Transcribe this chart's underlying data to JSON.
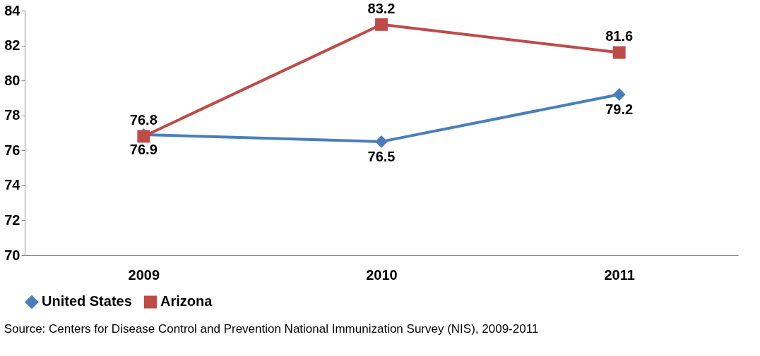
{
  "chart_data": {
    "type": "line",
    "categories": [
      "2009",
      "2010",
      "2011"
    ],
    "series": [
      {
        "name": "United States",
        "color": "#4a7ebb",
        "marker": "diamond",
        "values": [
          76.9,
          76.5,
          79.2
        ]
      },
      {
        "name": "Arizona",
        "color": "#be4b48",
        "marker": "square",
        "values": [
          76.8,
          83.2,
          81.6
        ]
      }
    ],
    "ylim": [
      70,
      84
    ],
    "yticks": [
      70,
      72,
      74,
      76,
      78,
      80,
      82,
      84
    ],
    "data_labels": true,
    "grid": false,
    "legend": "bottom",
    "line_style": "solid",
    "annotations": [
      "Source: Centers for Disease Control and Prevention National Immunization Survey (NIS), 2009-2011"
    ]
  }
}
